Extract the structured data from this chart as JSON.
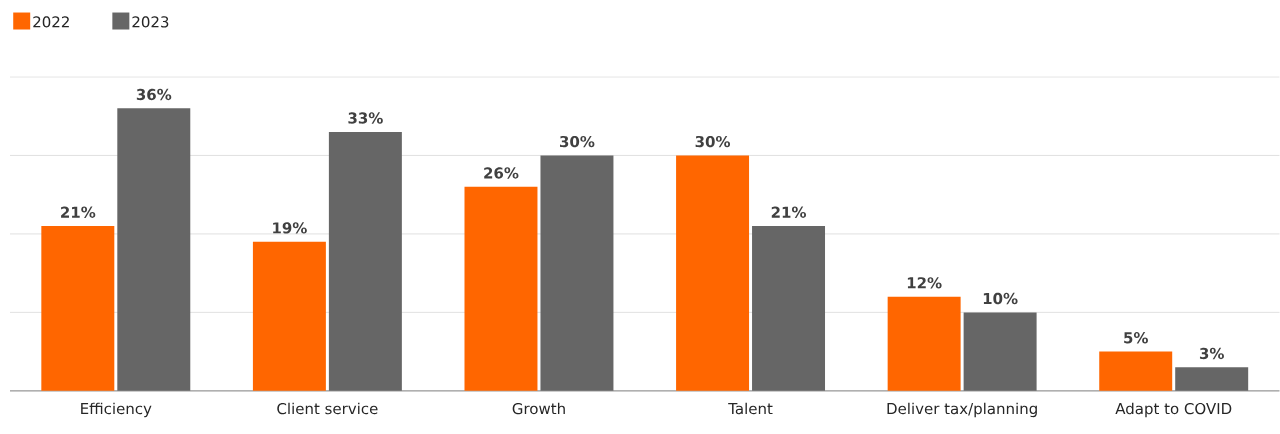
{
  "chart_data": {
    "type": "bar",
    "categories": [
      "Efficiency",
      "Client service",
      "Growth",
      "Talent",
      "Deliver tax/planning",
      "Adapt to COVID"
    ],
    "series": [
      {
        "name": "2022",
        "color": "#ff6600",
        "values": [
          21,
          19,
          26,
          30,
          12,
          5
        ],
        "value_labels": [
          "21%",
          "19%",
          "26%",
          "30%",
          "12%",
          "5%"
        ]
      },
      {
        "name": "2023",
        "color": "#666666",
        "values": [
          36,
          33,
          30,
          21,
          10,
          3
        ],
        "value_labels": [
          "36%",
          "33%",
          "30%",
          "21%",
          "10%",
          "3%"
        ]
      }
    ],
    "ylim": [
      0,
      40
    ],
    "yticks": [
      {
        "value": 0,
        "label": null
      },
      {
        "value": 10,
        "label": null
      },
      {
        "value": 20,
        "label": null
      },
      {
        "value": 30,
        "label": null
      },
      {
        "value": 40,
        "label": null
      }
    ],
    "tick_labels": "x",
    "grid": "y",
    "legend": "top left"
  }
}
